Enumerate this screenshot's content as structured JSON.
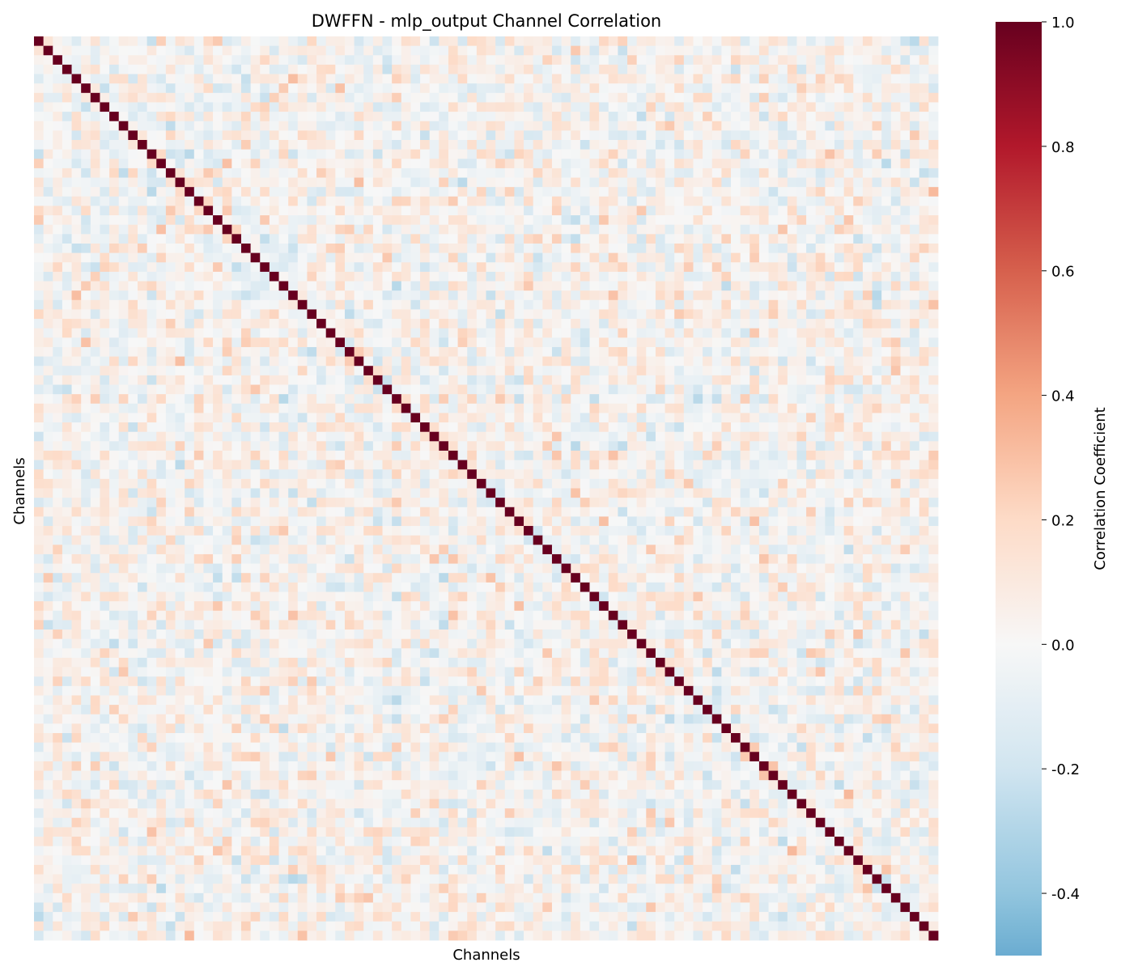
{
  "chart_data": {
    "type": "heatmap",
    "title": "DWFFN - mlp_output Channel Correlation",
    "xlabel": "Channels",
    "ylabel": "Channels",
    "n_channels": 96,
    "diagonal_value": 1.0,
    "off_diagonal_range": [
      -0.4,
      0.4
    ],
    "value_range": [
      -0.5,
      1.0
    ],
    "colormap": "RdBu_r",
    "colormap_center": 0.0,
    "x_ticks_shown": false,
    "y_ticks_shown": false,
    "grid": false,
    "colorbar": {
      "label": "Correlation Coefficient",
      "range": [
        -0.5,
        1.0
      ],
      "ticks": [
        1.0,
        0.8,
        0.6,
        0.4,
        0.2,
        0.0,
        -0.2,
        -0.4
      ],
      "tick_labels": [
        "1.0",
        "0.8",
        "0.6",
        "0.4",
        "0.2",
        "0.0",
        "-0.2",
        "-0.4"
      ]
    },
    "colors": {
      "dark_red": "#67001f",
      "red": "#b2182b",
      "salmon": "#d6604d",
      "peach": "#f4a582",
      "light_peach": "#fddbc7",
      "neutral": "#f7f7f7",
      "light_blue": "#d1e5f0",
      "blue": "#92c5de",
      "mid_blue": "#67a9cf"
    }
  }
}
